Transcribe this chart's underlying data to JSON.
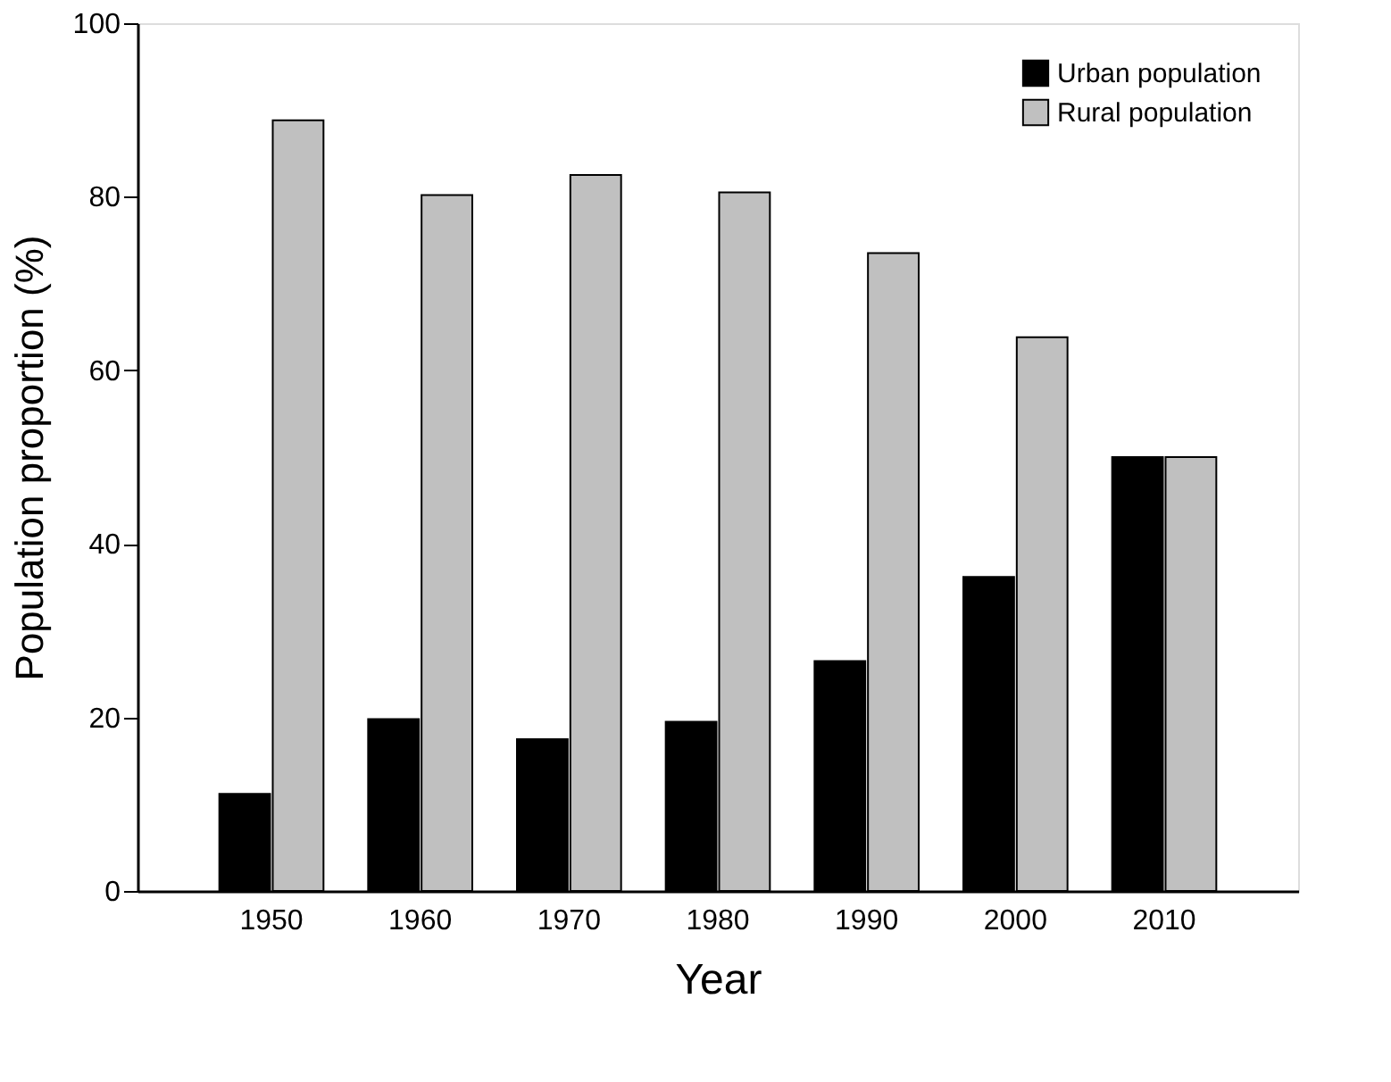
{
  "chart_data": {
    "type": "bar",
    "xlabel": "Year",
    "ylabel": "Population proportion (%)",
    "categories": [
      "1950",
      "1960",
      "1970",
      "1980",
      "1990",
      "2000",
      "2010"
    ],
    "series": [
      {
        "name": "Urban population",
        "color": "#000000",
        "values": [
          11.2,
          19.8,
          17.5,
          19.5,
          26.5,
          36.2,
          50.0
        ]
      },
      {
        "name": "Rural population",
        "color": "#c0c0c0",
        "values": [
          88.8,
          80.2,
          82.5,
          80.5,
          73.5,
          63.8,
          50.0
        ]
      }
    ],
    "ylim": [
      0,
      100
    ],
    "yticks": [
      0,
      20,
      40,
      60,
      80,
      100
    ],
    "grid": false,
    "legend": "top right"
  }
}
